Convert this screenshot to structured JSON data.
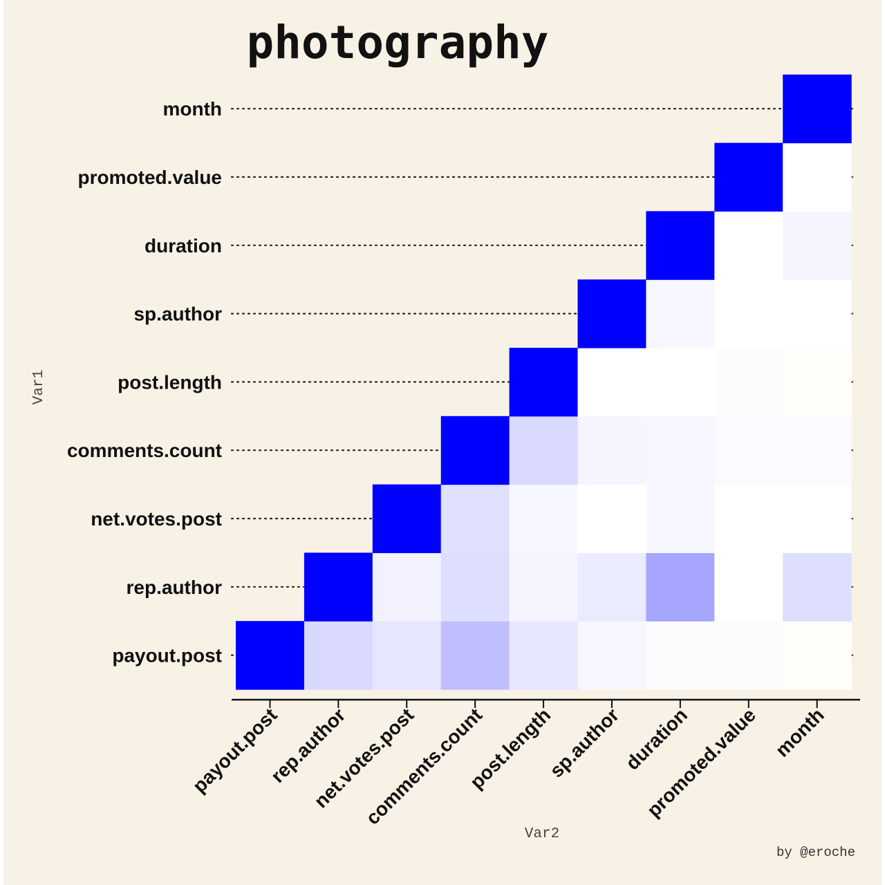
{
  "chart_data": {
    "type": "heatmap",
    "title": "photography",
    "xlabel": "Var2",
    "ylabel": "Var1",
    "caption": "by @eroche",
    "variables": [
      "payout.post",
      "rep.author",
      "net.votes.post",
      "comments.count",
      "post.length",
      "sp.author",
      "duration",
      "promoted.value",
      "month"
    ],
    "matrix": [
      [
        1.0,
        0.15,
        0.1,
        0.25,
        0.1,
        0.03,
        0.01,
        0.01,
        -0.02
      ],
      [
        0.15,
        1.0,
        0.05,
        0.13,
        0.04,
        0.08,
        0.35,
        0.0,
        0.13
      ],
      [
        0.1,
        0.05,
        1.0,
        0.12,
        0.03,
        0.0,
        0.03,
        0.0,
        0.0
      ],
      [
        0.25,
        0.13,
        0.12,
        1.0,
        0.15,
        0.04,
        0.03,
        0.02,
        0.02
      ],
      [
        0.1,
        0.04,
        0.03,
        0.15,
        1.0,
        0.0,
        0.0,
        0.01,
        -0.02
      ],
      [
        0.03,
        0.08,
        0.0,
        0.04,
        0.0,
        1.0,
        0.03,
        0.0,
        0.0
      ],
      [
        0.01,
        0.35,
        0.03,
        0.03,
        0.0,
        0.03,
        1.0,
        0.0,
        0.04
      ],
      [
        0.01,
        0.0,
        0.0,
        0.02,
        0.01,
        0.0,
        0.0,
        1.0,
        0.0
      ],
      [
        -0.02,
        0.13,
        0.0,
        0.02,
        -0.02,
        0.0,
        0.04,
        0.0,
        1.0
      ]
    ],
    "color_scale": {
      "low": "#ff8c00",
      "mid": "#ffffff",
      "high": "#0000ff",
      "range": [
        -1,
        1
      ]
    },
    "triangle": "upper",
    "grid": false
  }
}
